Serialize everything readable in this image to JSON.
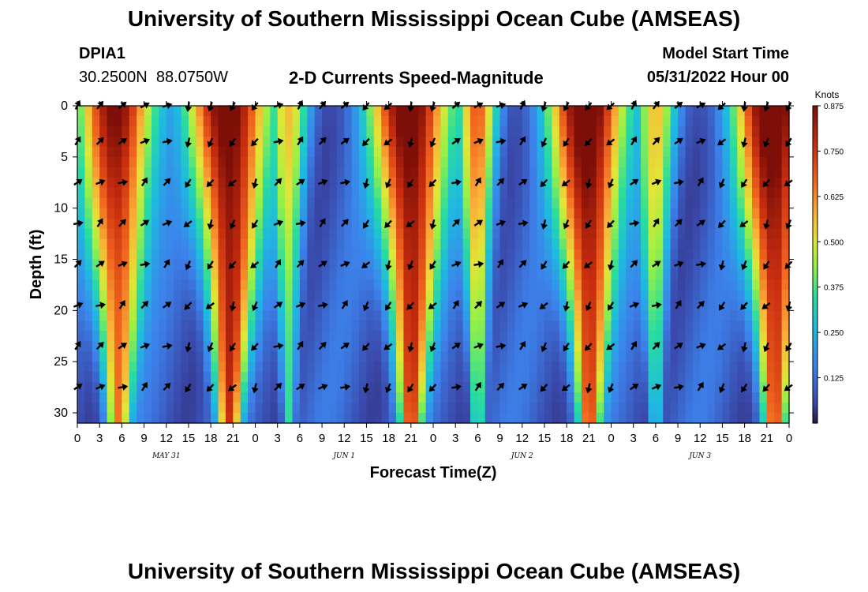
{
  "header": {
    "title": "University of Southern Mississippi Ocean Cube (AMSEAS)",
    "station_id": "DPIA1",
    "station_coords": "30.2500N  88.0750W",
    "plot_title": "2-D Currents Speed-Magnitude",
    "model_start_label": "Model Start Time",
    "model_start_value": "05/31/2022 Hour 00"
  },
  "footer": {
    "title": "University of Southern Mississippi Ocean Cube (AMSEAS)"
  },
  "chart_data": {
    "type": "heatmap",
    "title": "2-D Currents Speed-Magnitude",
    "xlabel": "Forecast Time(Z)",
    "ylabel": "Depth (ft)",
    "x_range_hours": [
      0,
      96
    ],
    "y_range_ft": [
      0,
      31
    ],
    "x_tick_labels": [
      "0",
      "3",
      "6",
      "9",
      "12",
      "15",
      "18",
      "21",
      "0",
      "3",
      "6",
      "9",
      "12",
      "15",
      "18",
      "21",
      "0",
      "3",
      "6",
      "9",
      "12",
      "15",
      "18",
      "21",
      "0",
      "3",
      "6",
      "9",
      "12",
      "15",
      "18",
      "21",
      "0"
    ],
    "y_ticks": [
      0,
      5,
      10,
      15,
      20,
      25,
      30
    ],
    "date_labels": [
      {
        "label": "MAY 31",
        "hour": 12
      },
      {
        "label": "JUN 1",
        "hour": 36
      },
      {
        "label": "JUN 2",
        "hour": 60
      },
      {
        "label": "JUN 3",
        "hour": 84
      }
    ],
    "colorbar": {
      "unit": "Knots",
      "min": 0,
      "max": 0.875,
      "ticks": [
        "0.875",
        "0.750",
        "0.625",
        "0.500",
        "0.375",
        "0.250",
        "0.125"
      ]
    },
    "speed_peaks": [
      {
        "hour": 5.5,
        "max_knots": 0.78,
        "flood": true
      },
      {
        "hour": 20.5,
        "max_knots": 0.875,
        "flood": false
      },
      {
        "hour": 28.5,
        "max_knots": 0.42,
        "flood": true
      },
      {
        "hour": 45,
        "max_knots": 0.875,
        "flood": false
      },
      {
        "hour": 54,
        "max_knots": 0.55,
        "flood": true
      },
      {
        "hour": 69,
        "max_knots": 0.875,
        "flood": false
      },
      {
        "hour": 78,
        "max_knots": 0.42,
        "flood": true
      },
      {
        "hour": 94,
        "max_knots": 0.875,
        "flood": false
      }
    ],
    "arrow_depths_ft": [
      0,
      3.5,
      7.5,
      11.5,
      15.5,
      19.5,
      23.5,
      27.5
    ],
    "arrow_hours": [
      0,
      3,
      6,
      9,
      12,
      15,
      18,
      21,
      24,
      27,
      30,
      33,
      36,
      39,
      42,
      45,
      48,
      51,
      54,
      57,
      60,
      63,
      66,
      69,
      72,
      75,
      78,
      81,
      84,
      87,
      90,
      93,
      96
    ]
  }
}
